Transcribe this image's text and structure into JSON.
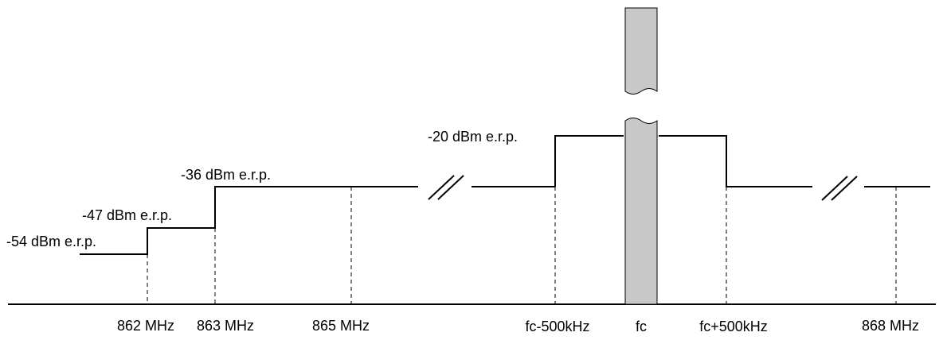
{
  "levels": {
    "l54": "-54 dBm e.r.p.",
    "l47": "-47 dBm e.r.p.",
    "l36": "-36 dBm e.r.p.",
    "l20": "-20 dBm e.r.p."
  },
  "frequencies": {
    "f862": "862 MHz",
    "f863": "863 MHz",
    "f865": "865 MHz",
    "fc_minus": "fc-500kHz",
    "fc": "fc",
    "fc_plus": "fc+500kHz",
    "f868": "868 MHz"
  },
  "colors": {
    "carrier_band": "#c8c8c8",
    "lines": "#000000"
  }
}
